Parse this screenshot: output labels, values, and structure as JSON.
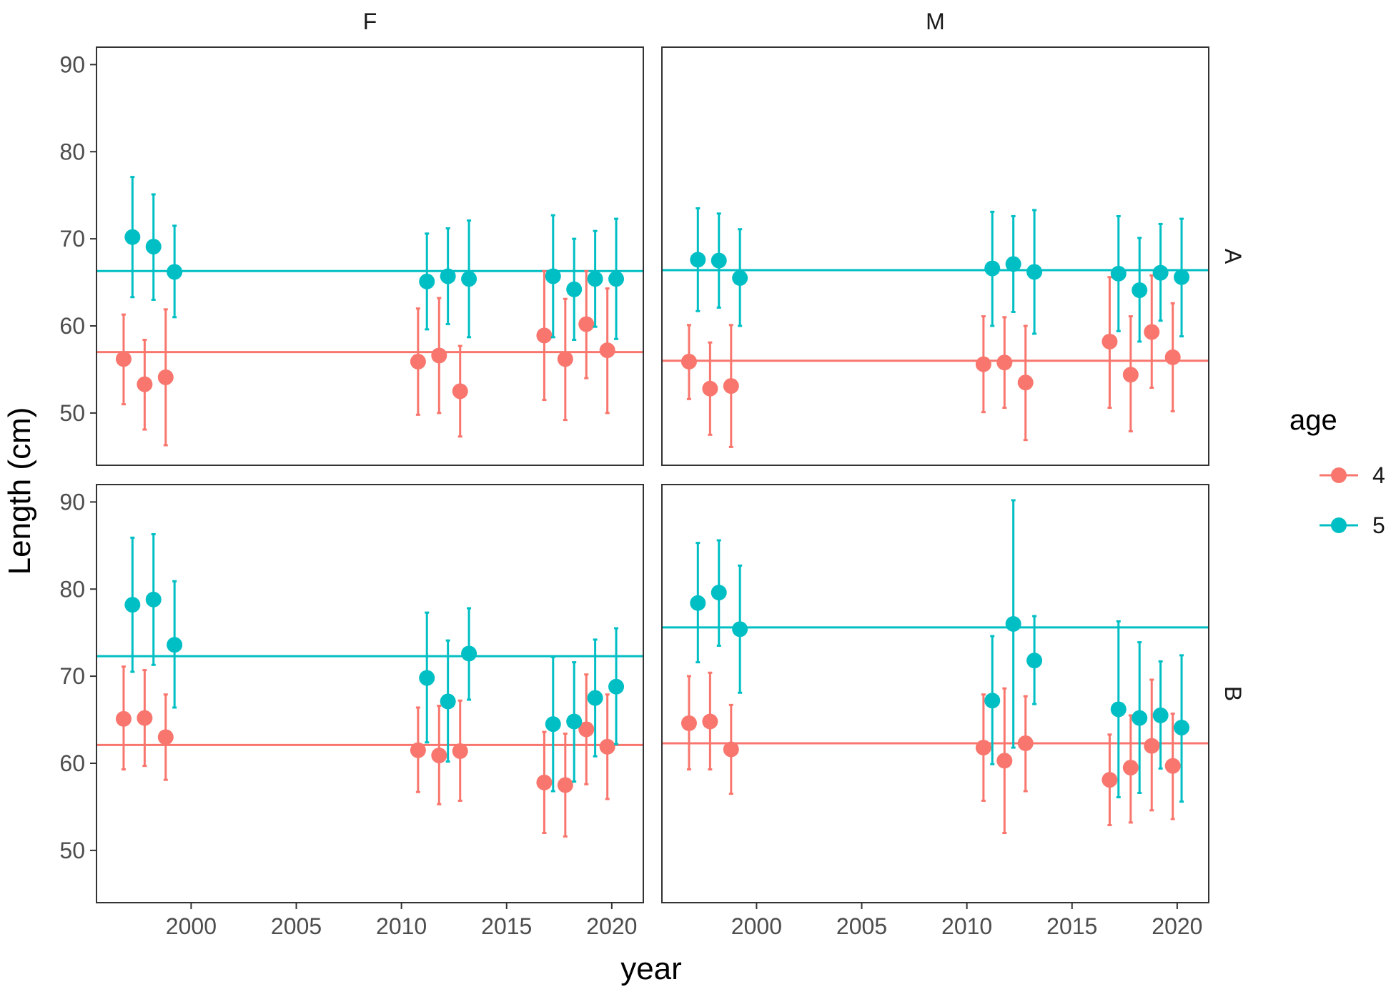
{
  "chart_data": {
    "type": "scatter",
    "xlabel": "year",
    "ylabel": "Length (cm)",
    "xlim": [
      1995.5,
      2021.5
    ],
    "ylim": [
      44,
      92
    ],
    "x_ticks": [
      2000,
      2005,
      2010,
      2015,
      2020
    ],
    "y_ticks": [
      50,
      60,
      70,
      80,
      90
    ],
    "facet_cols": [
      "F",
      "M"
    ],
    "facet_rows": [
      "A",
      "B"
    ],
    "legend": {
      "title": "age",
      "position": "right",
      "labels": [
        "4",
        "5"
      ]
    },
    "colors": {
      "4": "#F8766D",
      "5": "#00BFC4",
      "panel_border": "#333333",
      "tick": "#4d4d4d"
    },
    "years": [
      1997,
      1998,
      1999,
      2011,
      2012,
      2013,
      2017,
      2018,
      2019,
      2020
    ],
    "panels": [
      {
        "col": "F",
        "row": "A",
        "series": [
          {
            "name": "4",
            "hline": 57.0,
            "points": [
              [
                1997,
                56.2,
                51.0,
                61.3
              ],
              [
                1998,
                53.3,
                48.1,
                58.4
              ],
              [
                1999,
                54.1,
                46.3,
                61.9
              ],
              [
                2011,
                55.9,
                49.8,
                62.0
              ],
              [
                2012,
                56.6,
                50.0,
                63.2
              ],
              [
                2013,
                52.5,
                47.3,
                57.7
              ],
              [
                2017,
                58.9,
                51.5,
                66.3
              ],
              [
                2018,
                56.2,
                49.2,
                63.1
              ],
              [
                2019,
                60.2,
                54.0,
                66.3
              ],
              [
                2020,
                57.2,
                50.0,
                64.3
              ]
            ]
          },
          {
            "name": "5",
            "hline": 66.3,
            "points": [
              [
                1997,
                70.2,
                63.3,
                77.1
              ],
              [
                1998,
                69.1,
                63.0,
                75.1
              ],
              [
                1999,
                66.2,
                61.0,
                71.5
              ],
              [
                2011,
                65.1,
                59.6,
                70.6
              ],
              [
                2012,
                65.7,
                60.2,
                71.2
              ],
              [
                2013,
                65.4,
                58.7,
                72.1
              ],
              [
                2017,
                65.7,
                58.7,
                72.7
              ],
              [
                2018,
                64.2,
                58.4,
                70.0
              ],
              [
                2019,
                65.4,
                59.9,
                70.9
              ],
              [
                2020,
                65.4,
                58.5,
                72.3
              ]
            ]
          }
        ]
      },
      {
        "col": "M",
        "row": "A",
        "series": [
          {
            "name": "4",
            "hline": 56.0,
            "points": [
              [
                1997,
                55.9,
                51.6,
                60.1
              ],
              [
                1998,
                52.8,
                47.5,
                58.1
              ],
              [
                1999,
                53.1,
                46.1,
                60.1
              ],
              [
                2011,
                55.6,
                50.1,
                61.1
              ],
              [
                2012,
                55.8,
                50.6,
                61.0
              ],
              [
                2013,
                53.5,
                46.9,
                60.0
              ],
              [
                2017,
                58.2,
                50.6,
                65.6
              ],
              [
                2018,
                54.4,
                47.9,
                61.1
              ],
              [
                2019,
                59.3,
                52.9,
                65.8
              ],
              [
                2020,
                56.4,
                50.2,
                62.6
              ]
            ]
          },
          {
            "name": "5",
            "hline": 66.4,
            "points": [
              [
                1997,
                67.6,
                61.7,
                73.5
              ],
              [
                1998,
                67.5,
                62.1,
                72.9
              ],
              [
                1999,
                65.5,
                60.0,
                71.1
              ],
              [
                2011,
                66.6,
                60.0,
                73.1
              ],
              [
                2012,
                67.1,
                61.6,
                72.6
              ],
              [
                2013,
                66.2,
                59.1,
                73.3
              ],
              [
                2017,
                66.0,
                59.4,
                72.6
              ],
              [
                2018,
                64.1,
                58.2,
                70.1
              ],
              [
                2019,
                66.1,
                60.6,
                71.7
              ],
              [
                2020,
                65.6,
                58.8,
                72.3
              ]
            ]
          }
        ]
      },
      {
        "col": "F",
        "row": "B",
        "series": [
          {
            "name": "4",
            "hline": 62.1,
            "points": [
              [
                1997,
                65.1,
                59.3,
                71.1
              ],
              [
                1998,
                65.2,
                59.7,
                70.7
              ],
              [
                1999,
                63.0,
                58.1,
                67.9
              ],
              [
                2011,
                61.5,
                56.7,
                66.4
              ],
              [
                2012,
                60.9,
                55.3,
                66.6
              ],
              [
                2013,
                61.4,
                55.7,
                67.2
              ],
              [
                2017,
                57.8,
                52.0,
                63.6
              ],
              [
                2018,
                57.5,
                51.6,
                63.4
              ],
              [
                2019,
                63.9,
                57.6,
                70.2
              ],
              [
                2020,
                61.9,
                55.9,
                67.9
              ]
            ]
          },
          {
            "name": "5",
            "hline": 72.3,
            "points": [
              [
                1997,
                78.2,
                70.5,
                85.9
              ],
              [
                1998,
                78.8,
                71.3,
                86.3
              ],
              [
                1999,
                73.6,
                66.4,
                80.9
              ],
              [
                2011,
                69.8,
                62.4,
                77.3
              ],
              [
                2012,
                67.1,
                60.2,
                74.1
              ],
              [
                2013,
                72.6,
                67.3,
                77.8
              ],
              [
                2017,
                64.5,
                56.8,
                72.2
              ],
              [
                2018,
                64.8,
                57.9,
                71.6
              ],
              [
                2019,
                67.5,
                60.8,
                74.2
              ],
              [
                2020,
                68.8,
                62.2,
                75.5
              ]
            ]
          }
        ]
      },
      {
        "col": "M",
        "row": "B",
        "series": [
          {
            "name": "4",
            "hline": 62.3,
            "points": [
              [
                1997,
                64.6,
                59.3,
                70.0
              ],
              [
                1998,
                64.8,
                59.3,
                70.4
              ],
              [
                1999,
                61.6,
                56.5,
                66.7
              ],
              [
                2011,
                61.8,
                55.7,
                67.9
              ],
              [
                2012,
                60.3,
                52.0,
                68.6
              ],
              [
                2013,
                62.3,
                56.8,
                67.7
              ],
              [
                2017,
                58.1,
                52.9,
                63.3
              ],
              [
                2018,
                59.5,
                53.2,
                65.5
              ],
              [
                2019,
                62.0,
                54.6,
                69.6
              ],
              [
                2020,
                59.7,
                53.6,
                65.7
              ]
            ]
          },
          {
            "name": "5",
            "hline": 75.6,
            "points": [
              [
                1997,
                78.4,
                71.6,
                85.3
              ],
              [
                1998,
                79.6,
                73.5,
                85.6
              ],
              [
                1999,
                75.4,
                68.1,
                82.7
              ],
              [
                2011,
                67.2,
                59.9,
                74.6
              ],
              [
                2012,
                76.0,
                61.8,
                90.2
              ],
              [
                2013,
                71.8,
                66.8,
                76.9
              ],
              [
                2017,
                66.2,
                56.1,
                76.3
              ],
              [
                2018,
                65.2,
                56.6,
                73.9
              ],
              [
                2019,
                65.5,
                59.4,
                71.7
              ],
              [
                2020,
                64.1,
                55.6,
                72.4
              ]
            ]
          }
        ]
      }
    ]
  }
}
